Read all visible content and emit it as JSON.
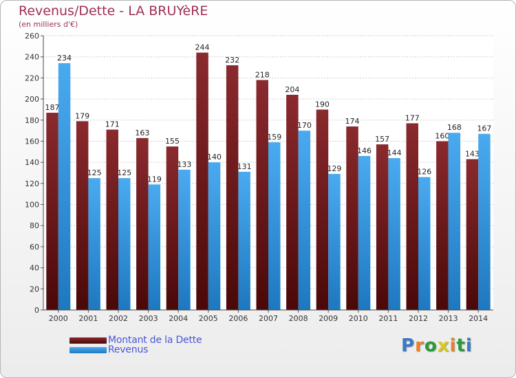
{
  "chart_data": {
    "type": "bar",
    "title": "Revenus/Dette - LA BRUYèRE",
    "subtitle": "(en milliers d'€)",
    "xlabel": "",
    "ylabel": "",
    "ylim": [
      0,
      260
    ],
    "yticks": [
      0,
      20,
      40,
      60,
      80,
      100,
      120,
      140,
      160,
      180,
      200,
      220,
      240,
      260
    ],
    "grid": true,
    "categories": [
      "2000",
      "2001",
      "2002",
      "2003",
      "2004",
      "2005",
      "2006",
      "2007",
      "2008",
      "2009",
      "2010",
      "2011",
      "2012",
      "2013",
      "2014"
    ],
    "series": [
      {
        "name": "Montant de la Dette",
        "color": "#7a1f22",
        "values": [
          187,
          179,
          171,
          163,
          155,
          244,
          232,
          218,
          204,
          190,
          174,
          157,
          177,
          160,
          143
        ]
      },
      {
        "name": "Revenus",
        "color": "#3a9ee0",
        "values": [
          234,
          125,
          125,
          119,
          133,
          140,
          131,
          159,
          170,
          129,
          146,
          144,
          126,
          168,
          167
        ]
      }
    ],
    "legend": {
      "position": "bottom-left"
    }
  },
  "branding": {
    "logo_text": "Proxiti",
    "letter_colors": [
      "#3a78c8",
      "#e8822a",
      "#2a9a3a",
      "#d8c820",
      "#e8822a",
      "#2a9a3a",
      "#3a78c8"
    ]
  }
}
